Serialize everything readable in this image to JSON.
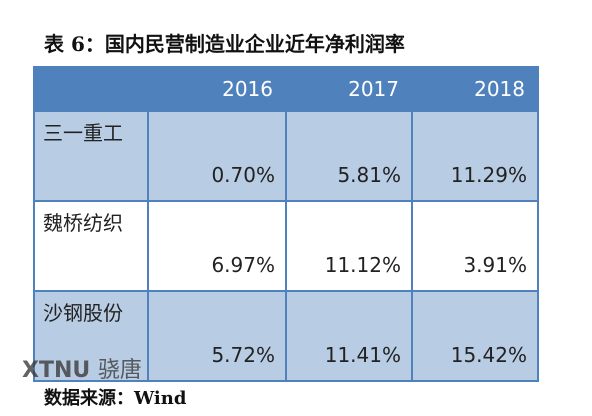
{
  "header": {
    "title": "表 6：国内民营制造业企业近年净利润率"
  },
  "table": {
    "columns": [
      "2016",
      "2017",
      "2018"
    ],
    "rows": [
      [
        "三一重工",
        "0.70%",
        "5.81%",
        "11.29%"
      ],
      [
        "魏桥纺织",
        "6.97%",
        "11.12%",
        "3.91%"
      ],
      [
        "沙钢股份",
        "5.72%",
        "11.41%",
        "15.42%"
      ]
    ]
  },
  "source": "数据来源：Wind",
  "watermark": {
    "logo": "XTNU",
    "name": "骁唐"
  }
}
